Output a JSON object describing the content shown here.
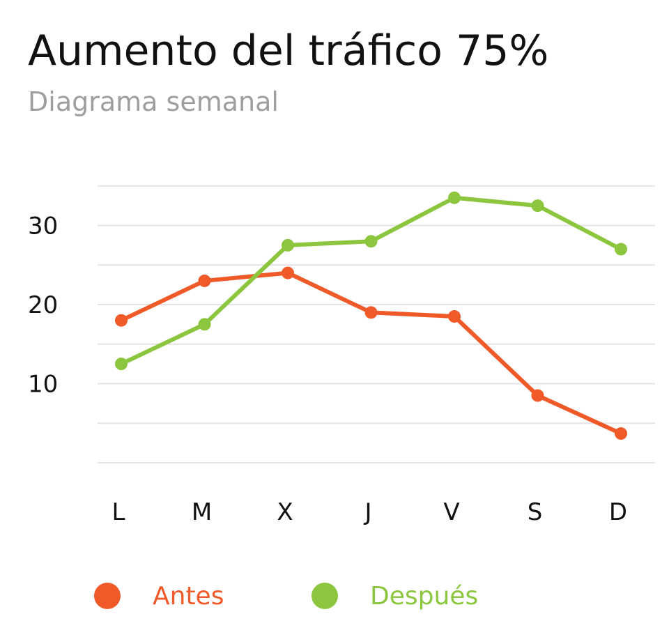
{
  "title": "Aumento del tráfico 75%",
  "subtitle": "Diagrama semanal",
  "colors": {
    "antes": "#f05a28",
    "despues": "#8cc63f",
    "grid": "#e4e4e4",
    "text": "#111111",
    "subtitle": "#9e9e9e"
  },
  "chart_data": {
    "type": "line",
    "title": "Aumento del tráfico 75%",
    "subtitle": "Diagrama semanal",
    "categories": [
      "L",
      "M",
      "X",
      "J",
      "V",
      "S",
      "D"
    ],
    "y_ticks": [
      10,
      20,
      30
    ],
    "ylim": [
      0,
      35
    ],
    "grid": true,
    "legend_position": "bottom",
    "series": [
      {
        "name": "Antes",
        "color": "#f05a28",
        "values": [
          18,
          23,
          24,
          19,
          18.5,
          8.5,
          3.7
        ]
      },
      {
        "name": "Después",
        "color": "#8cc63f",
        "values": [
          12.5,
          17.5,
          27.5,
          28,
          33.5,
          32.5,
          27
        ]
      }
    ]
  }
}
